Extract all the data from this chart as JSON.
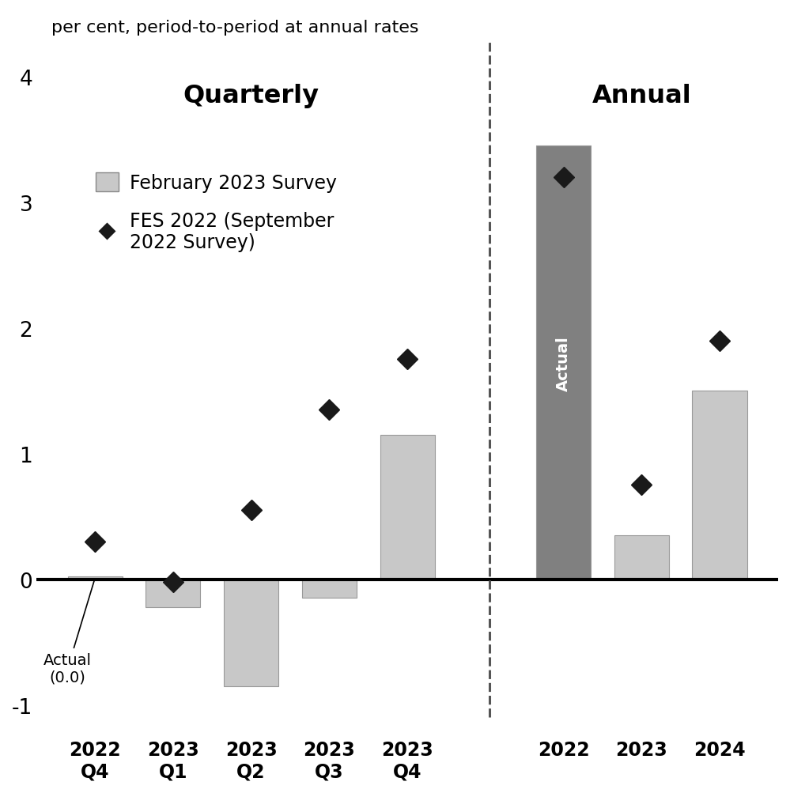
{
  "subtitle": "per cent, period-to-period at annual rates",
  "quarterly_labels": [
    "2022\nQ4",
    "2023\nQ1",
    "2023\nQ2",
    "2023\nQ3",
    "2023\nQ4"
  ],
  "annual_labels": [
    "2022",
    "2023",
    "2024"
  ],
  "bar_values_quarterly": [
    0.02,
    -0.22,
    -0.85,
    -0.15,
    1.15
  ],
  "bar_values_annual": [
    3.45,
    0.35,
    1.5
  ],
  "diamond_values_quarterly": [
    0.3,
    -0.02,
    0.55,
    1.35,
    1.75
  ],
  "diamond_values_annual": [
    3.2,
    0.75,
    1.9
  ],
  "bar_color_quarterly": "#c8c8c8",
  "bar_color_annual_actual": "#808080",
  "bar_color_annual_proj": "#c8c8c8",
  "diamond_color": "#1a1a1a",
  "zero_line_color": "#000000",
  "dashed_line_color": "#555555",
  "section_label_quarterly": "Quarterly",
  "section_label_annual": "Annual",
  "legend_bar_label": "February 2023 Survey",
  "legend_diamond_label": "FES 2022 (September\n2022 Survey)",
  "actual_label_2022q4": "Actual\n(0.0)",
  "actual_bar_label": "Actual",
  "ylim": [
    -1.25,
    4.3
  ],
  "yticks": [
    -1,
    0,
    1,
    2,
    3,
    4
  ],
  "figsize": [
    9.99,
    10.04
  ],
  "dpi": 100
}
